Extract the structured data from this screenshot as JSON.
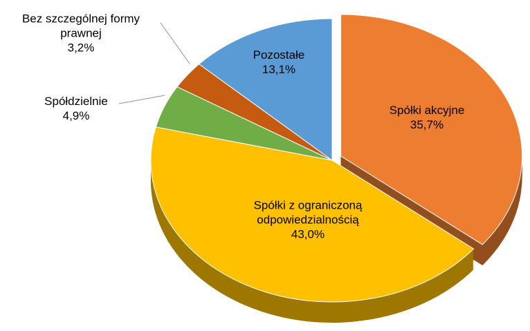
{
  "chart_data": {
    "type": "pie",
    "categories": [
      "Spółki akcyjne",
      "Spółki z ograniczoną odpowiedzialnością",
      "Spółdzielnie",
      "Bez szczególnej formy prawnej",
      "Pozostałe"
    ],
    "values": [
      35.7,
      43.0,
      4.9,
      3.2,
      13.1
    ],
    "value_labels": [
      "35,7%",
      "43,0%",
      "4,9%",
      "3,2%",
      "13,1%"
    ],
    "colors": [
      "#ed7d31",
      "#ffc000",
      "#70ad47",
      "#c55a11",
      "#5b9bd5"
    ]
  }
}
